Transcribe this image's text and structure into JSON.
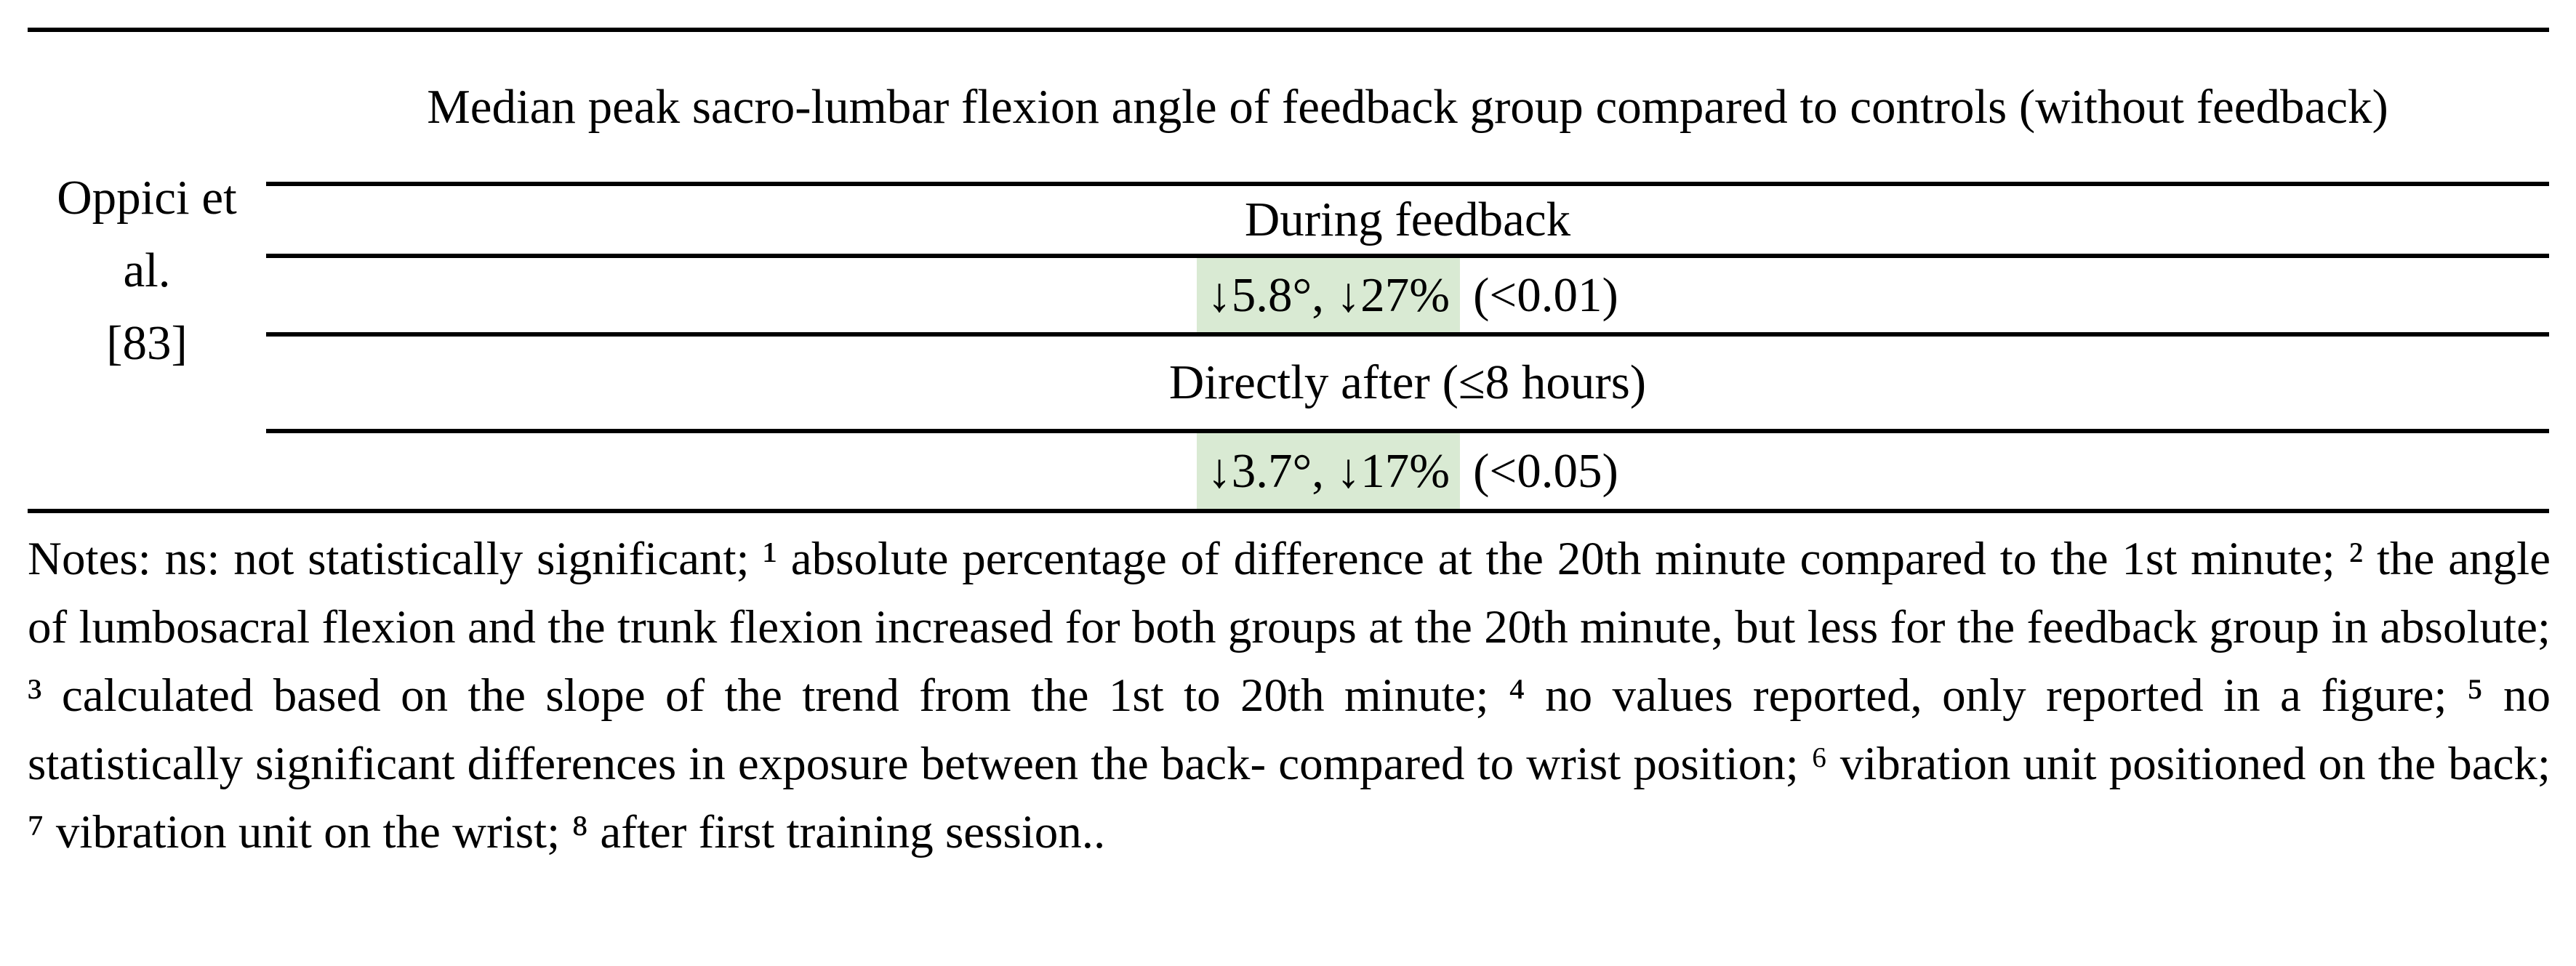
{
  "table": {
    "study": {
      "name_line1": "Oppici et al.",
      "name_line2": "[83]"
    },
    "header": "Median peak sacro-lumbar flexion angle of feedback group compared to controls (without feedback)",
    "rows": [
      {
        "label": "During feedback"
      },
      {
        "highlight": "↓5.8°, ↓27%",
        "p_value": "(<0.01)"
      },
      {
        "label": "Directly after (≤8 hours)"
      },
      {
        "highlight": "↓3.7°, ↓17%",
        "p_value": "(<0.05)"
      }
    ],
    "highlight_color": "#d9ead3"
  },
  "notes": "Notes: ns: not statistically significant; ¹ absolute percentage of difference at the 20th minute compared to the 1st minute; ² the angle of lumbosacral flexion and the trunk flexion increased for both groups at the 20th minute, but less for the feedback group in absolute; ³ calculated based on the slope of the trend from the 1st to 20th minute; ⁴ no values reported, only reported in a figure; ⁵ no statistically significant differences in exposure between the back- compared to wrist position; ⁶ vibration unit positioned on the back; ⁷ vibration unit on the wrist; ⁸ after first training session.."
}
